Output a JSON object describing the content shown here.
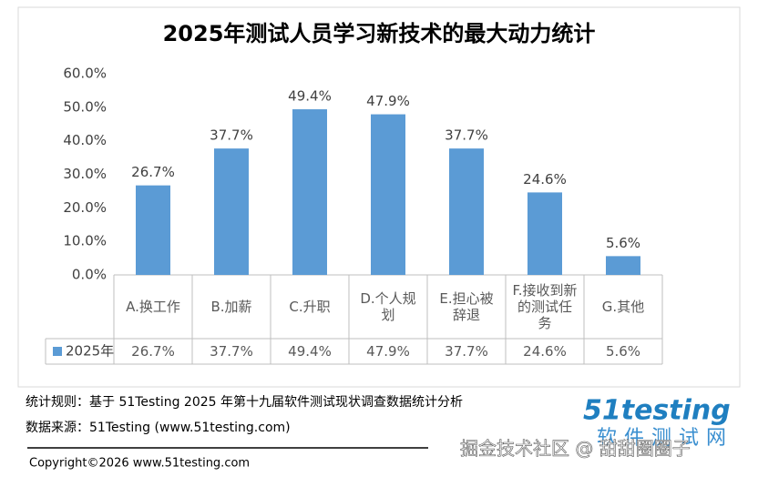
{
  "chart_data": {
    "type": "bar",
    "title": "2025年测试人员学习新技术的最大动力统计",
    "categories": [
      "A.换工作",
      "B.加薪",
      "C.升职",
      "D.个人规划",
      "E.担心被辞退",
      "F.接收到新的测试任务",
      "G.其他"
    ],
    "series": [
      {
        "name": "2025年",
        "color": "#5b9bd5",
        "values": [
          26.7,
          37.7,
          49.4,
          47.9,
          37.7,
          24.6,
          5.6
        ],
        "value_labels": [
          "26.7%",
          "37.7%",
          "49.4%",
          "47.9%",
          "37.7%",
          "24.6%",
          "5.6%"
        ]
      }
    ],
    "ylim": [
      0,
      60
    ],
    "yticks": [
      {
        "value": 0,
        "label": "0.0%"
      },
      {
        "value": 10,
        "label": "10.0%"
      },
      {
        "value": 20,
        "label": "20.0%"
      },
      {
        "value": 30,
        "label": "30.0%"
      },
      {
        "value": 40,
        "label": "40.0%"
      },
      {
        "value": 50,
        "label": "50.0%"
      },
      {
        "value": 60,
        "label": "60.0%"
      }
    ],
    "grid": false
  },
  "footer": {
    "rule": "统计规则：基于 51Testing 2025 年第十九届软件测试现状调查数据统计分析",
    "source": "数据来源：51Testing (www.51testing.com)",
    "copyright": "Copyright©2026 www.51testing.com",
    "watermark": "掘金技术社区 @ 甜甜圈圈子",
    "logo": "51testing",
    "logo_subtitle": "软件测试网"
  }
}
